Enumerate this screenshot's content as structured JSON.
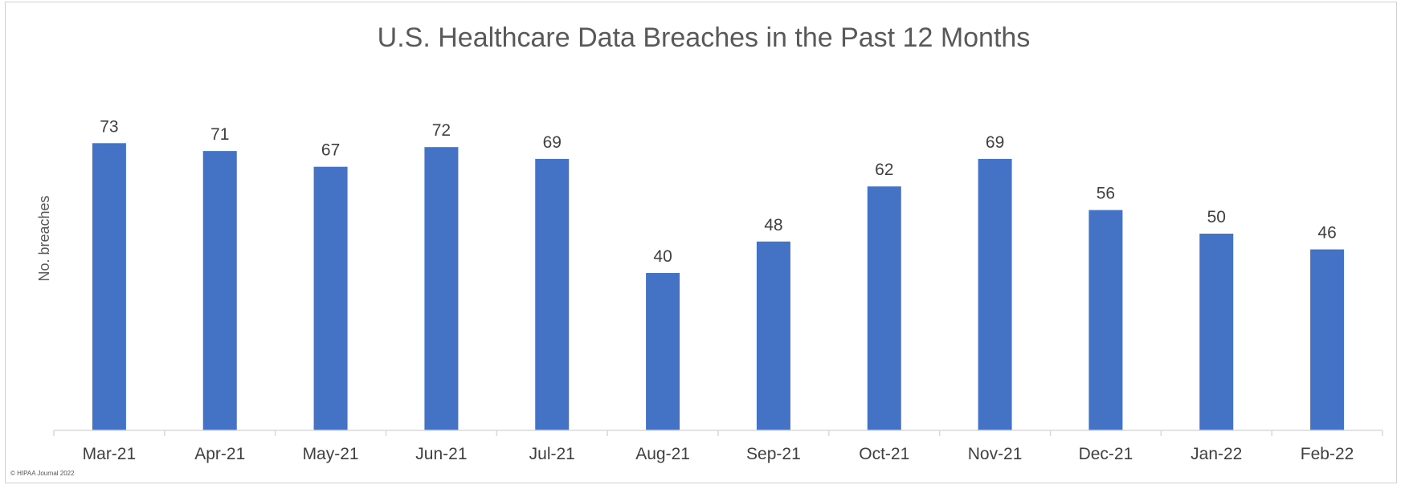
{
  "chart_data": {
    "type": "bar",
    "title": "U.S. Healthcare Data Breaches in the Past 12 Months",
    "xlabel": "",
    "ylabel": "No. breaches",
    "categories": [
      "Mar-21",
      "Apr-21",
      "May-21",
      "Jun-21",
      "Jul-21",
      "Aug-21",
      "Sep-21",
      "Oct-21",
      "Nov-21",
      "Dec-21",
      "Jan-22",
      "Feb-22"
    ],
    "values": [
      73,
      71,
      67,
      72,
      69,
      40,
      48,
      62,
      69,
      56,
      50,
      46
    ],
    "ylim": [
      0,
      80
    ],
    "grid": false,
    "legend": "none",
    "data_labels": true,
    "bar_color": "#4472C4"
  },
  "credit": "© HIPAA Journal 2022"
}
